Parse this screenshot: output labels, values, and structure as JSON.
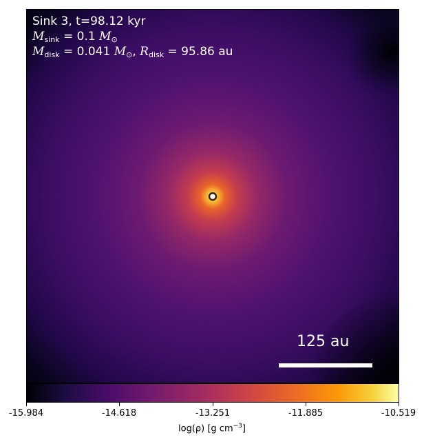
{
  "header": {
    "title": "Sink 3, t=98.12 kyr",
    "m_sink_value": "0.1",
    "m_disk_value": "0.041",
    "r_disk_value": "95.86 au"
  },
  "scale_bar": {
    "label": "125 au"
  },
  "colorbar": {
    "colormap": "inferno",
    "min": -15.984,
    "max": -10.519,
    "ticks": [
      "-15.984",
      "-14.618",
      "-13.251",
      "-11.885",
      "-10.519"
    ],
    "label": "log(ρ) [g cm",
    "label_exponent": "−3",
    "label_close": "]"
  },
  "colors": {
    "background_dark": "#26094f",
    "core": "#fdf9a8",
    "sink_marker_edge": "#3b1f0a"
  }
}
